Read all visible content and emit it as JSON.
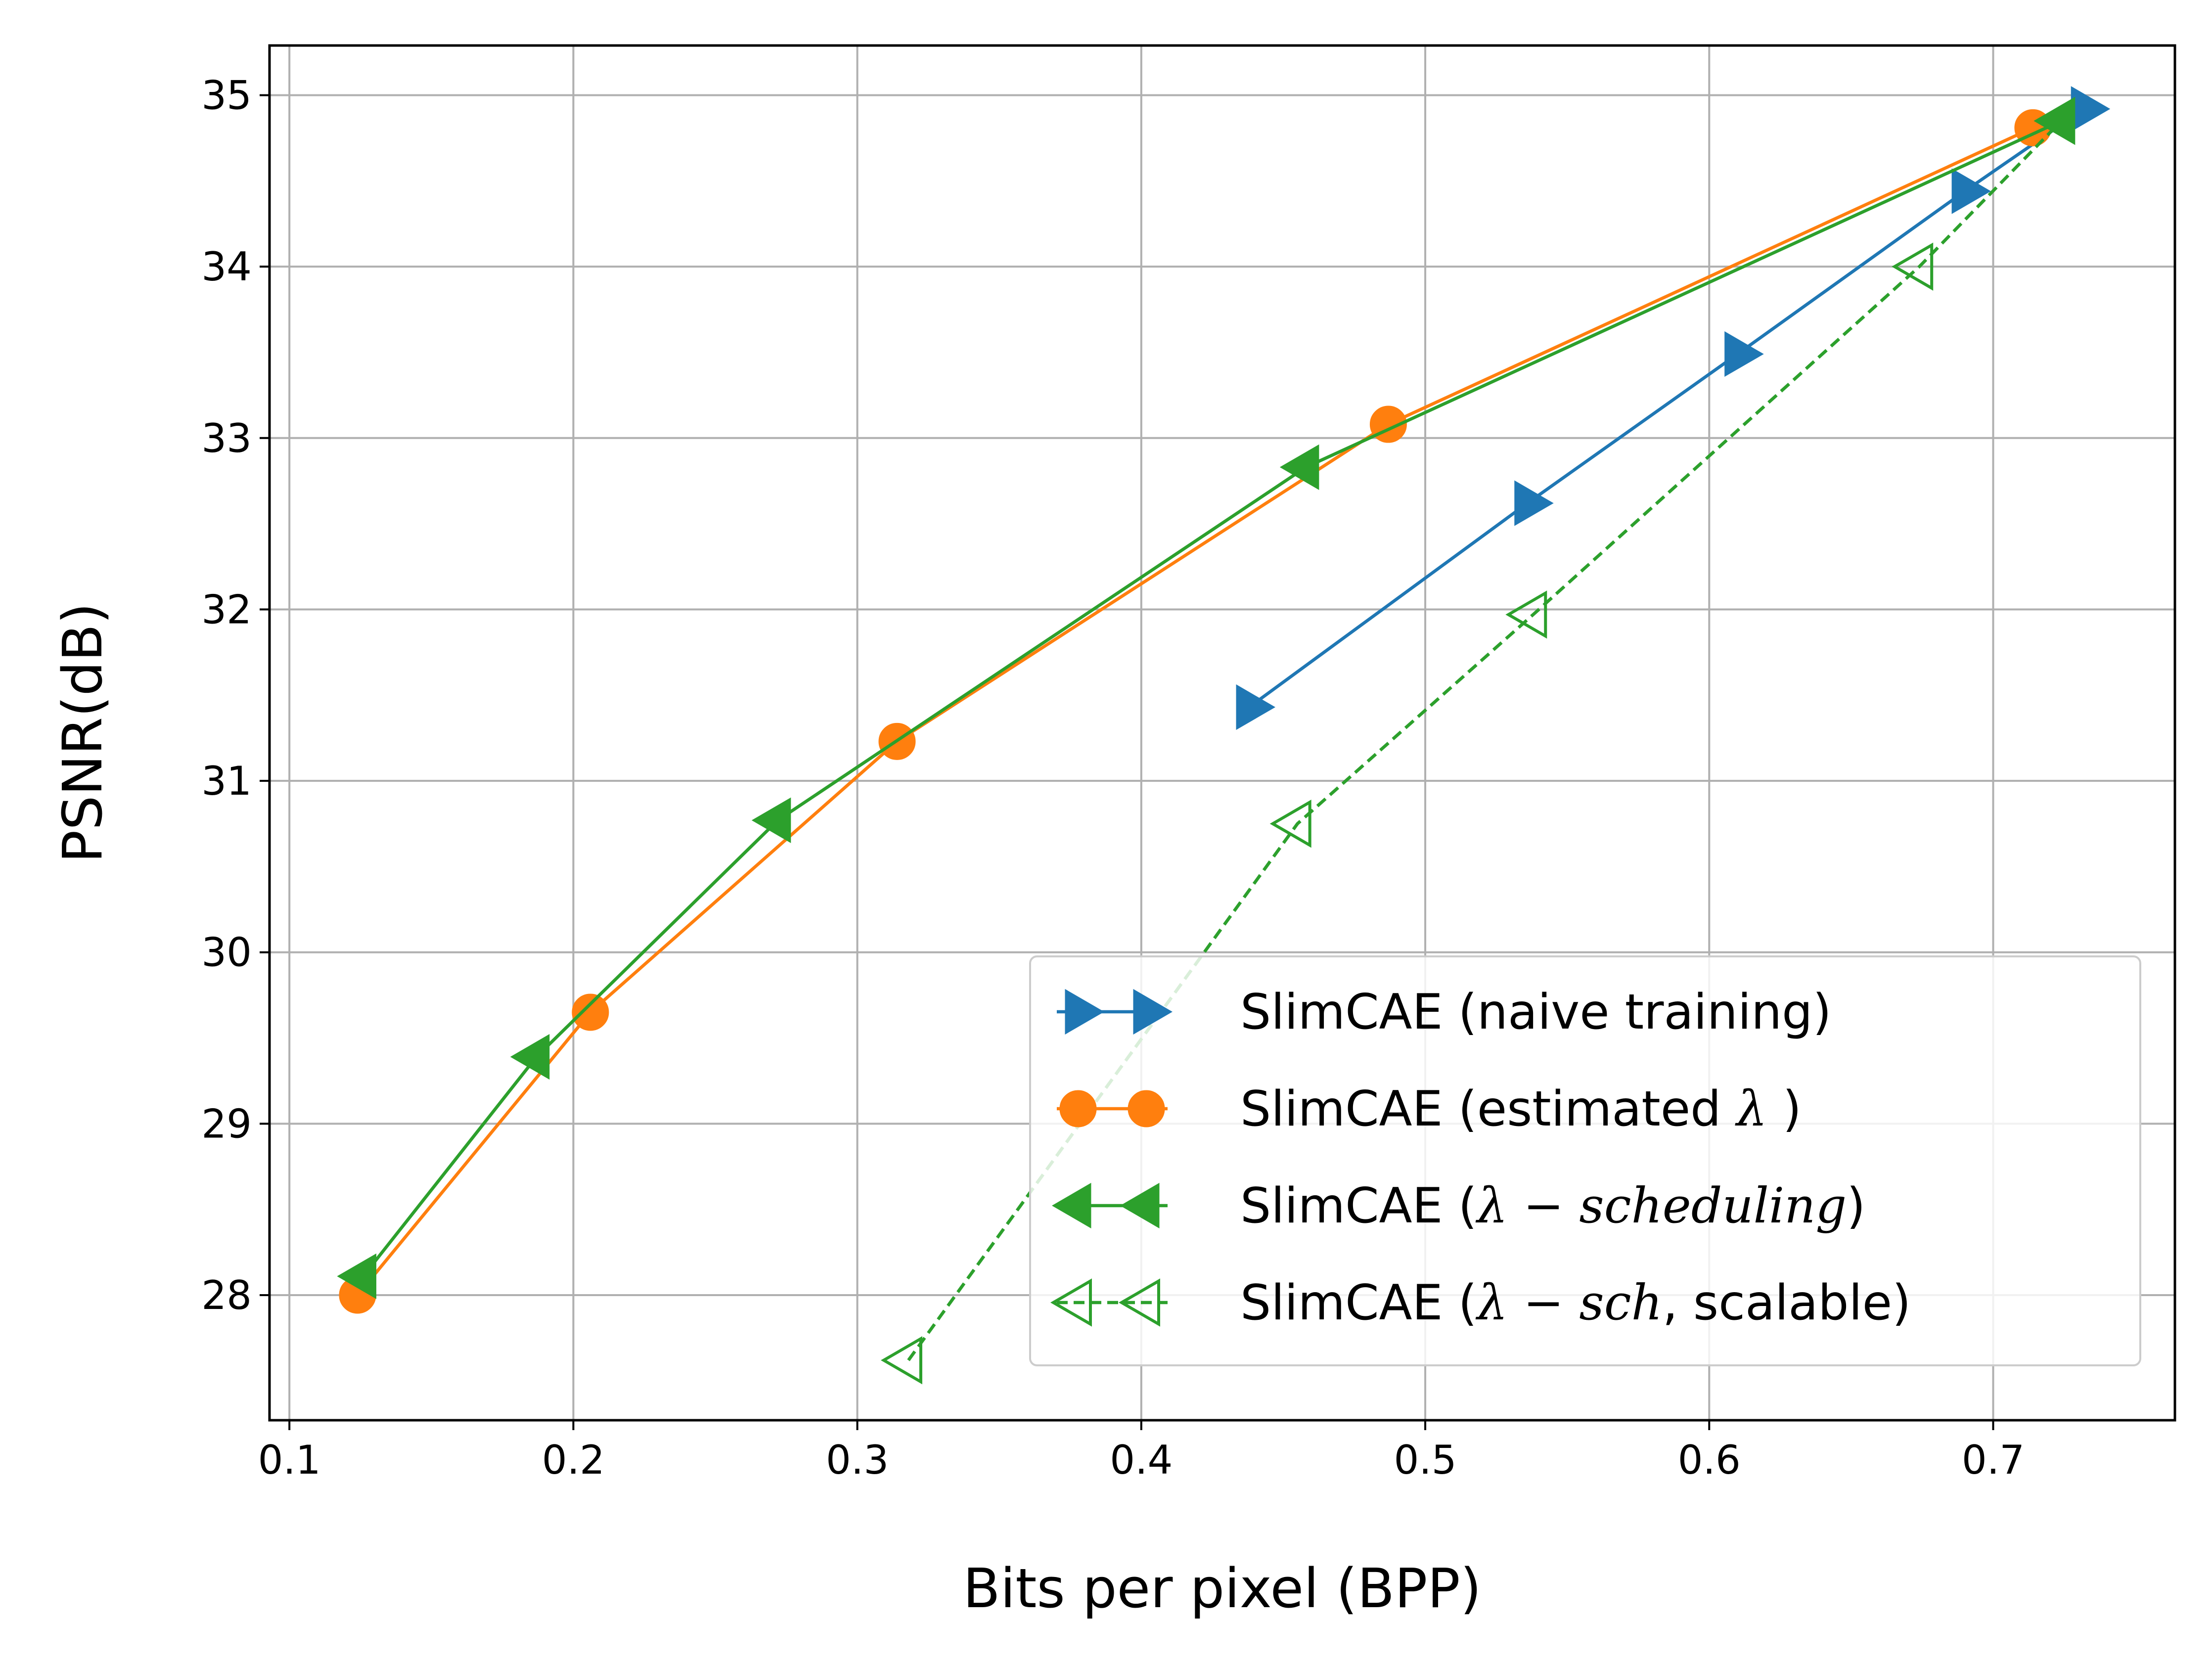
{
  "chart_data": {
    "type": "line",
    "title": "",
    "xlabel": "Bits per pixel (BPP)",
    "ylabel": "PSNR(dB)",
    "xlim": [
      0.093,
      0.764
    ],
    "ylim": [
      27.27,
      35.29
    ],
    "grid": true,
    "legend_position": "lower-right",
    "x_ticks": [
      {
        "value": 0.1,
        "label": "0.1"
      },
      {
        "value": 0.2,
        "label": "0.2"
      },
      {
        "value": 0.3,
        "label": "0.3"
      },
      {
        "value": 0.4,
        "label": "0.4"
      },
      {
        "value": 0.5,
        "label": "0.5"
      },
      {
        "value": 0.6,
        "label": "0.6"
      },
      {
        "value": 0.7,
        "label": "0.7"
      }
    ],
    "y_ticks": [
      {
        "value": 28,
        "label": "28"
      },
      {
        "value": 29,
        "label": "29"
      },
      {
        "value": 30,
        "label": "30"
      },
      {
        "value": 31,
        "label": "31"
      },
      {
        "value": 32,
        "label": "32"
      },
      {
        "value": 33,
        "label": "33"
      },
      {
        "value": 34,
        "label": "34"
      },
      {
        "value": 35,
        "label": "35"
      }
    ],
    "series": [
      {
        "id": "naive",
        "name": "SlimCAE (naive training)",
        "color": "#1f77b4",
        "marker": "triangle-right",
        "filled": true,
        "dashed": false,
        "x": [
          0.438,
          0.536,
          0.61,
          0.69,
          0.732
        ],
        "y": [
          31.43,
          32.62,
          33.49,
          34.44,
          34.92
        ]
      },
      {
        "id": "estimated",
        "name": "SlimCAE (estimated λ )",
        "color": "#ff7f0e",
        "marker": "circle",
        "filled": true,
        "dashed": false,
        "x": [
          0.124,
          0.206,
          0.314,
          0.487,
          0.714
        ],
        "y": [
          28.0,
          29.65,
          31.23,
          33.08,
          34.81
        ]
      },
      {
        "id": "scheduling",
        "name": "SlimCAE (λ − scheduling)",
        "color": "#2ca02c",
        "marker": "triangle-left",
        "filled": true,
        "dashed": false,
        "x": [
          0.126,
          0.187,
          0.272,
          0.458,
          0.724
        ],
        "y": [
          28.11,
          29.39,
          30.77,
          32.83,
          34.85
        ]
      },
      {
        "id": "scalable",
        "name": "SlimCAE (λ − sch, scalable)",
        "color": "#2ca02c",
        "marker": "triangle-left",
        "filled": false,
        "dashed": true,
        "x": [
          0.318,
          0.455,
          0.538,
          0.674,
          0.724
        ],
        "y": [
          27.62,
          30.75,
          31.97,
          34.0,
          34.85
        ]
      }
    ],
    "legend": [
      {
        "series": "naive",
        "prefix": "SlimCAE (naive training)",
        "math": "",
        "suffix": ""
      },
      {
        "series": "estimated",
        "prefix": "SlimCAE (estimated ",
        "math": "λ",
        "suffix": " )"
      },
      {
        "series": "scheduling",
        "prefix": "SlimCAE (",
        "math": "λ − scheduling",
        "suffix": ")"
      },
      {
        "series": "scalable",
        "prefix": "SlimCAE (",
        "math": "λ − sch",
        "suffix": ", scalable)"
      }
    ]
  }
}
